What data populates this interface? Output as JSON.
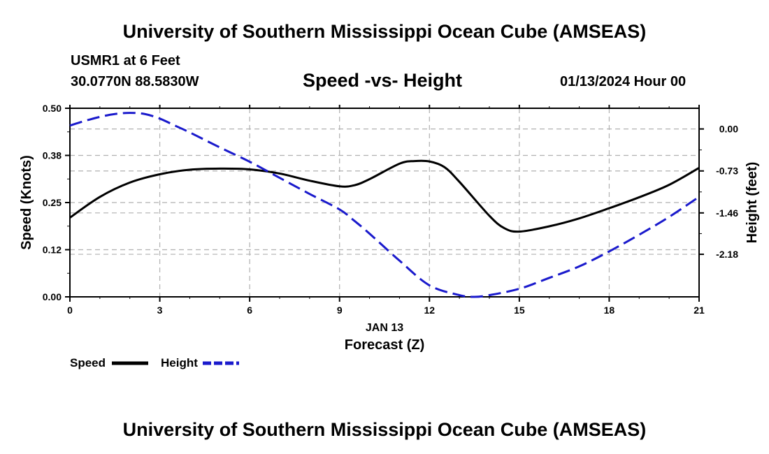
{
  "header": {
    "main_title": "University of Southern Mississippi Ocean Cube (AMSEAS)",
    "station": "USMR1 at 6 Feet",
    "location": "30.0770N  88.5830W",
    "plot_title": "Speed -vs- Height",
    "date_label": "01/13/2024 Hour 00"
  },
  "footer": {
    "main_title": "University of Southern Mississippi Ocean Cube (AMSEAS)"
  },
  "legend": {
    "speed_label": "Speed",
    "height_label": "Height"
  },
  "colors": {
    "speed": "#000000",
    "height": "#1a1acc",
    "grid": "#b0b0b0"
  },
  "chart_data": {
    "type": "line",
    "title": "Speed -vs- Height",
    "xlabel": "Forecast (Z)",
    "xlabel_date": "JAN 13",
    "ylabel": "Speed (Knots)",
    "y2label": "Height (feet)",
    "xlim": [
      0,
      21
    ],
    "ylim": [
      0,
      0.5
    ],
    "y2lim": [
      -2.92,
      0.36
    ],
    "x_ticks": [
      0,
      3,
      6,
      9,
      12,
      15,
      18,
      21
    ],
    "x_tick_labels": [
      "0",
      "3",
      "6",
      "9",
      "12",
      "15",
      "18",
      "21"
    ],
    "y_ticks": [
      0,
      0.125,
      0.25,
      0.375,
      0.5
    ],
    "y_tick_labels": [
      "0.00",
      "0.12",
      "0.25",
      "0.38",
      "0.50"
    ],
    "y2_ticks": [
      0.0,
      -0.73,
      -1.46,
      -2.18
    ],
    "y2_tick_labels": [
      "0.00",
      "-0.73",
      "-1.46",
      "-2.18"
    ],
    "grid": true,
    "legend_position": "bottom-left",
    "series": [
      {
        "name": "Speed",
        "axis": "left",
        "style": "solid",
        "x": [
          0,
          1,
          2,
          3,
          4,
          5,
          6,
          7,
          8,
          9,
          9.5,
          10,
          11,
          11.5,
          12,
          12.5,
          13,
          14,
          14.5,
          15,
          16,
          17,
          18,
          19,
          20,
          21
        ],
        "values": [
          0.21,
          0.265,
          0.303,
          0.325,
          0.337,
          0.34,
          0.338,
          0.327,
          0.308,
          0.293,
          0.296,
          0.312,
          0.353,
          0.36,
          0.359,
          0.344,
          0.305,
          0.215,
          0.182,
          0.173,
          0.187,
          0.208,
          0.235,
          0.264,
          0.297,
          0.342
        ]
      },
      {
        "name": "Height",
        "axis": "right",
        "style": "dashed",
        "x": [
          0,
          0.5,
          1,
          1.5,
          2,
          2.5,
          3,
          3.5,
          4,
          5,
          6,
          7,
          8,
          9,
          9.5,
          10,
          11,
          12,
          13,
          13.5,
          14,
          15,
          16,
          17,
          18,
          19,
          20,
          21
        ],
        "values": [
          0.06,
          0.14,
          0.21,
          0.26,
          0.28,
          0.26,
          0.18,
          0.06,
          -0.06,
          -0.32,
          -0.57,
          -0.85,
          -1.13,
          -1.4,
          -1.6,
          -1.82,
          -2.29,
          -2.72,
          -2.89,
          -2.92,
          -2.89,
          -2.78,
          -2.59,
          -2.39,
          -2.13,
          -1.84,
          -1.53,
          -1.18
        ]
      }
    ]
  }
}
